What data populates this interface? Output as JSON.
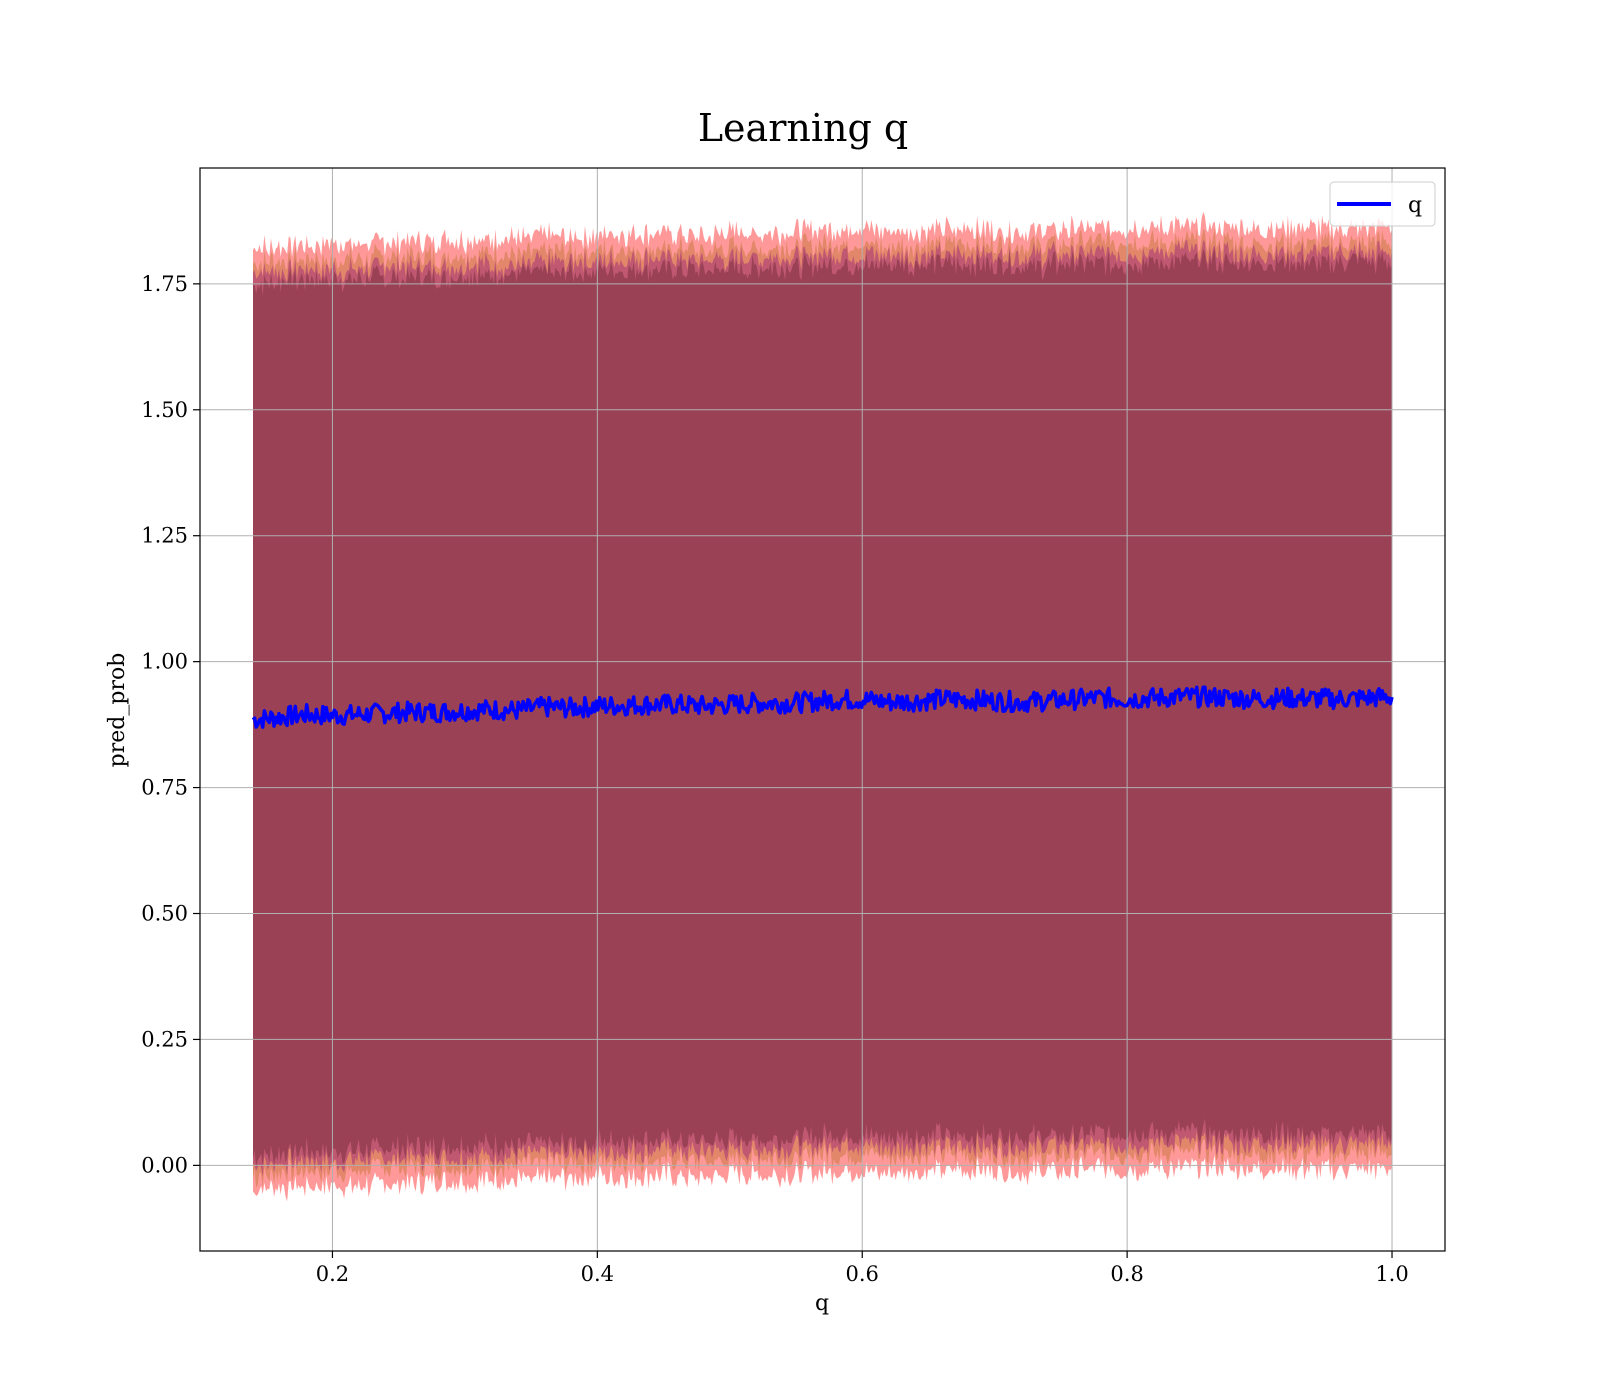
{
  "chart_data": {
    "type": "line",
    "title": "Learning q",
    "xlabel": "q",
    "ylabel": "pred_prob",
    "xlim": [
      0.1,
      1.04
    ],
    "ylim": [
      -0.17,
      1.98
    ],
    "x_ticks": [
      0.2,
      0.4,
      0.6,
      0.8,
      1.0
    ],
    "x_tick_labels": [
      "0.2",
      "0.4",
      "0.6",
      "0.8",
      "1.0"
    ],
    "y_ticks": [
      0.0,
      0.25,
      0.5,
      0.75,
      1.0,
      1.25,
      1.5,
      1.75
    ],
    "y_tick_labels": [
      "0.00",
      "0.25",
      "0.50",
      "0.75",
      "1.00",
      "1.25",
      "1.50",
      "1.75"
    ],
    "grid": true,
    "legend_position": "top-right",
    "series": [
      {
        "name": "q",
        "color": "#0000ff",
        "x": [
          0.14,
          0.16,
          0.18,
          0.2,
          0.22,
          0.24,
          0.26,
          0.28,
          0.3,
          0.32,
          0.34,
          0.36,
          0.38,
          0.4,
          0.42,
          0.44,
          0.46,
          0.48,
          0.5,
          0.52,
          0.54,
          0.56,
          0.58,
          0.6,
          0.62,
          0.64,
          0.66,
          0.68,
          0.7,
          0.72,
          0.74,
          0.76,
          0.78,
          0.8,
          0.82,
          0.84,
          0.86,
          0.88,
          0.9,
          0.92,
          0.94,
          0.96,
          0.98,
          1.0
        ],
        "y": [
          0.885,
          0.89,
          0.895,
          0.893,
          0.895,
          0.898,
          0.9,
          0.9,
          0.903,
          0.905,
          0.903,
          0.91,
          0.908,
          0.912,
          0.913,
          0.915,
          0.915,
          0.912,
          0.915,
          0.918,
          0.918,
          0.92,
          0.925,
          0.925,
          0.92,
          0.922,
          0.925,
          0.925,
          0.922,
          0.92,
          0.922,
          0.925,
          0.928,
          0.926,
          0.928,
          0.93,
          0.93,
          0.928,
          0.926,
          0.928,
          0.927,
          0.926,
          0.928,
          0.93
        ]
      }
    ],
    "bands": [
      {
        "color": "#ff0000",
        "alpha": 0.4,
        "upper_offset": 0.935,
        "lower_offset": -0.935
      },
      {
        "color": "#c07030",
        "alpha": 0.45,
        "upper_offset": 0.905,
        "lower_offset": -0.905
      },
      {
        "color": "#800080",
        "alpha": 0.35,
        "upper_offset": 0.885,
        "lower_offset": -0.885
      },
      {
        "color": "#7a3040",
        "alpha": 0.55,
        "upper_offset": 0.865,
        "lower_offset": -0.865
      }
    ],
    "legend": [
      {
        "label": "q",
        "color": "#0000ff"
      }
    ]
  }
}
